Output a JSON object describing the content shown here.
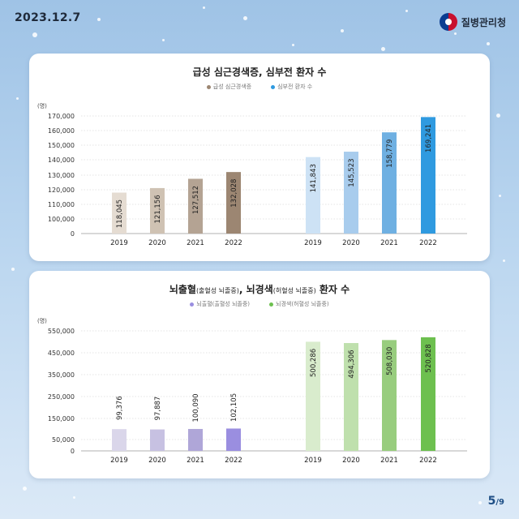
{
  "header": {
    "date": "2023.12.7",
    "agency": "질병관리청",
    "page_current": "5",
    "page_total": "9"
  },
  "colors": {
    "card1_series1": [
      "#e5dcd2",
      "#cfc2b3",
      "#b4a393",
      "#9c8672"
    ],
    "card1_series2": [
      "#cde2f5",
      "#a8cced",
      "#6fb0e2",
      "#2f9ae0"
    ],
    "card2_series1": [
      "#dad6ea",
      "#c7c1e2",
      "#afa6d8",
      "#9a8ee0"
    ],
    "card2_series2": [
      "#d9eccd",
      "#bfe0ad",
      "#98cd7e",
      "#6dc04f"
    ]
  },
  "chart_data": [
    {
      "type": "bar",
      "title": "급성 심근경색증, 심부전 환자 수",
      "ylabel": "(명)",
      "ylim": [
        0,
        170000
      ],
      "y_ticks": [
        "0",
        "100,000",
        "110,000",
        "120,000",
        "130,000",
        "140,000",
        "150,000",
        "160,000",
        "170,000"
      ],
      "categories": [
        "2019",
        "2020",
        "2021",
        "2022"
      ],
      "series": [
        {
          "name": "급성 심근경색증",
          "legend_color": "#9c8672",
          "values": [
            118045,
            121156,
            127512,
            132028
          ],
          "labels": [
            "118,045",
            "121,156",
            "127,512",
            "132,028"
          ]
        },
        {
          "name": "심부전 환자 수",
          "legend_color": "#2f9ae0",
          "values": [
            141843,
            145523,
            158779,
            169241
          ],
          "labels": [
            "141,843",
            "145,523",
            "158,779",
            "169,241"
          ]
        }
      ]
    },
    {
      "type": "bar",
      "title_main": "뇌출혈",
      "title_sub1": "(출혈성 뇌졸중)",
      "title_mid": ", 뇌경색",
      "title_sub2": "(허혈성 뇌졸중)",
      "title_end": " 환자 수",
      "ylabel": "(명)",
      "ylim": [
        0,
        550000
      ],
      "y_ticks": [
        "0",
        "50,000",
        "150,000",
        "250,000",
        "350,000",
        "450,000",
        "550,000"
      ],
      "categories": [
        "2019",
        "2020",
        "2021",
        "2022"
      ],
      "series": [
        {
          "name": "뇌출혈(출혈성 뇌졸중)",
          "legend_color": "#9a8ee0",
          "values": [
            99376,
            97887,
            100090,
            102105
          ],
          "labels": [
            "99,376",
            "97,887",
            "100,090",
            "102,105"
          ]
        },
        {
          "name": "뇌경색(허혈성 뇌졸중)",
          "legend_color": "#6dc04f",
          "values": [
            500286,
            494306,
            508030,
            520828
          ],
          "labels": [
            "500,286",
            "494,306",
            "508,030",
            "520,828"
          ]
        }
      ]
    }
  ]
}
